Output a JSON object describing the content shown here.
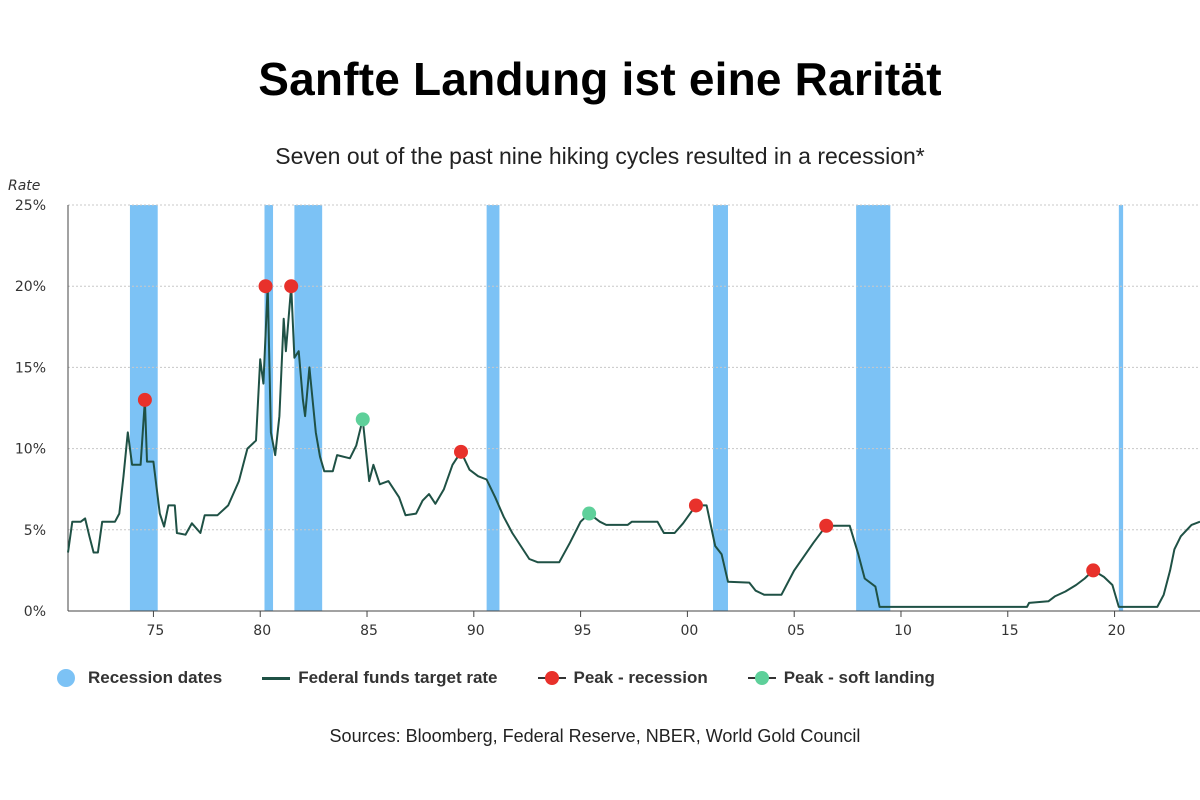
{
  "title": "Sanfte Landung ist eine Rarität",
  "subtitle": "Seven out of the past nine hiking cycles resulted in a recession*",
  "sources": "Sources: Bloomberg, Federal Reserve, NBER, World Gold Council",
  "colors": {
    "recession": "#7cc2f5",
    "line": "#1f5145",
    "peak_recession": "#e8312b",
    "peak_soft": "#5ed09a",
    "grid": "#c8c8c8"
  },
  "legend": [
    {
      "label": "Recession dates",
      "kind": "dot",
      "color": "#7cc2f5"
    },
    {
      "label": "Federal funds target rate",
      "kind": "line",
      "color": "#1f5145"
    },
    {
      "label": "Peak - recession",
      "kind": "marker",
      "color": "#e8312b"
    },
    {
      "label": "Peak - soft landing",
      "kind": "marker",
      "color": "#5ed09a"
    }
  ],
  "chart_data": {
    "type": "line",
    "ylabel": "Rate",
    "xlabel": "",
    "xlim": [
      1971,
      2024
    ],
    "ylim": [
      0,
      25
    ],
    "x_ticks": [
      {
        "value": 1975,
        "label": "75"
      },
      {
        "value": 1980,
        "label": "80"
      },
      {
        "value": 1985,
        "label": "85"
      },
      {
        "value": 1990,
        "label": "90"
      },
      {
        "value": 1995,
        "label": "95"
      },
      {
        "value": 2000,
        "label": "00"
      },
      {
        "value": 2005,
        "label": "05"
      },
      {
        "value": 2010,
        "label": "10"
      },
      {
        "value": 2015,
        "label": "15"
      },
      {
        "value": 2020,
        "label": "20"
      }
    ],
    "y_ticks": [
      {
        "value": 0,
        "label": "0%"
      },
      {
        "value": 5,
        "label": "5%"
      },
      {
        "value": 10,
        "label": "10%"
      },
      {
        "value": 15,
        "label": "15%"
      },
      {
        "value": 20,
        "label": "20%"
      },
      {
        "value": 25,
        "label": "25%"
      }
    ],
    "grid": true,
    "legend_position": "bottom",
    "recessions": [
      [
        1973.9,
        1975.2
      ],
      [
        1980.2,
        1980.6
      ],
      [
        1981.6,
        1982.9
      ],
      [
        1990.6,
        1991.2
      ],
      [
        2001.2,
        2001.9
      ],
      [
        2007.9,
        2009.5
      ],
      [
        2020.2,
        2020.4
      ]
    ],
    "series": [
      {
        "name": "Federal funds target rate",
        "points": [
          [
            1971.0,
            3.6
          ],
          [
            1971.2,
            5.5
          ],
          [
            1971.6,
            5.5
          ],
          [
            1971.8,
            5.7
          ],
          [
            1972.0,
            4.6
          ],
          [
            1972.2,
            3.6
          ],
          [
            1972.4,
            3.6
          ],
          [
            1972.6,
            5.5
          ],
          [
            1973.2,
            5.5
          ],
          [
            1973.4,
            6.0
          ],
          [
            1973.6,
            8.3
          ],
          [
            1973.8,
            11.0
          ],
          [
            1974.0,
            9.0
          ],
          [
            1974.4,
            9.0
          ],
          [
            1974.6,
            13.0
          ],
          [
            1974.7,
            9.2
          ],
          [
            1975.0,
            9.2
          ],
          [
            1975.3,
            6.0
          ],
          [
            1975.5,
            5.2
          ],
          [
            1975.7,
            6.5
          ],
          [
            1976.0,
            6.5
          ],
          [
            1976.1,
            4.8
          ],
          [
            1976.5,
            4.7
          ],
          [
            1976.8,
            5.4
          ],
          [
            1977.2,
            4.8
          ],
          [
            1977.4,
            5.9
          ],
          [
            1978.0,
            5.9
          ],
          [
            1978.5,
            6.5
          ],
          [
            1979.0,
            8.0
          ],
          [
            1979.4,
            10.0
          ],
          [
            1979.8,
            10.5
          ],
          [
            1980.0,
            15.5
          ],
          [
            1980.15,
            14.0
          ],
          [
            1980.35,
            20.0
          ],
          [
            1980.5,
            11.0
          ],
          [
            1980.7,
            9.6
          ],
          [
            1980.9,
            12.0
          ],
          [
            1981.1,
            18.0
          ],
          [
            1981.2,
            16.0
          ],
          [
            1981.45,
            20.0
          ],
          [
            1981.6,
            15.6
          ],
          [
            1981.8,
            16.0
          ],
          [
            1982.0,
            13.0
          ],
          [
            1982.1,
            12.0
          ],
          [
            1982.3,
            15.0
          ],
          [
            1982.6,
            11.0
          ],
          [
            1982.8,
            9.5
          ],
          [
            1983.0,
            8.6
          ],
          [
            1983.4,
            8.6
          ],
          [
            1983.6,
            9.6
          ],
          [
            1984.2,
            9.4
          ],
          [
            1984.5,
            10.2
          ],
          [
            1984.8,
            11.8
          ],
          [
            1985.1,
            8.0
          ],
          [
            1985.3,
            9.0
          ],
          [
            1985.6,
            7.8
          ],
          [
            1986.0,
            8.0
          ],
          [
            1986.5,
            7.0
          ],
          [
            1986.8,
            5.9
          ],
          [
            1987.3,
            6.0
          ],
          [
            1987.6,
            6.8
          ],
          [
            1987.9,
            7.2
          ],
          [
            1988.2,
            6.6
          ],
          [
            1988.6,
            7.5
          ],
          [
            1989.0,
            9.0
          ],
          [
            1989.4,
            9.8
          ],
          [
            1989.8,
            8.7
          ],
          [
            1990.2,
            8.3
          ],
          [
            1990.6,
            8.1
          ],
          [
            1991.0,
            7.0
          ],
          [
            1991.4,
            5.8
          ],
          [
            1991.8,
            4.8
          ],
          [
            1992.2,
            4.0
          ],
          [
            1992.6,
            3.2
          ],
          [
            1993.0,
            3.0
          ],
          [
            1994.0,
            3.0
          ],
          [
            1994.5,
            4.2
          ],
          [
            1995.0,
            5.5
          ],
          [
            1995.4,
            6.0
          ],
          [
            1995.9,
            5.5
          ],
          [
            1996.2,
            5.3
          ],
          [
            1997.2,
            5.3
          ],
          [
            1997.4,
            5.5
          ],
          [
            1998.6,
            5.5
          ],
          [
            1998.9,
            4.8
          ],
          [
            1999.4,
            4.8
          ],
          [
            1999.8,
            5.4
          ],
          [
            2000.4,
            6.5
          ],
          [
            2000.9,
            6.5
          ],
          [
            2001.3,
            4.0
          ],
          [
            2001.6,
            3.5
          ],
          [
            2001.9,
            1.8
          ],
          [
            2002.9,
            1.75
          ],
          [
            2003.2,
            1.25
          ],
          [
            2003.6,
            1.0
          ],
          [
            2004.4,
            1.0
          ],
          [
            2005.0,
            2.5
          ],
          [
            2005.9,
            4.2
          ],
          [
            2006.5,
            5.25
          ],
          [
            2007.6,
            5.25
          ],
          [
            2008.0,
            3.5
          ],
          [
            2008.3,
            2.0
          ],
          [
            2008.8,
            1.5
          ],
          [
            2009.0,
            0.25
          ],
          [
            2015.9,
            0.25
          ],
          [
            2016.0,
            0.5
          ],
          [
            2016.9,
            0.6
          ],
          [
            2017.2,
            0.9
          ],
          [
            2017.7,
            1.2
          ],
          [
            2018.2,
            1.6
          ],
          [
            2018.6,
            2.0
          ],
          [
            2019.0,
            2.5
          ],
          [
            2019.5,
            2.1
          ],
          [
            2019.9,
            1.6
          ],
          [
            2020.2,
            0.25
          ],
          [
            2022.0,
            0.25
          ],
          [
            2022.3,
            1.0
          ],
          [
            2022.6,
            2.5
          ],
          [
            2022.8,
            3.8
          ],
          [
            2023.1,
            4.6
          ],
          [
            2023.6,
            5.3
          ],
          [
            2024.0,
            5.5
          ]
        ]
      }
    ],
    "peaks_recession": [
      [
        1974.6,
        13.0
      ],
      [
        1980.25,
        20.0
      ],
      [
        1981.45,
        20.0
      ],
      [
        1989.4,
        9.8
      ],
      [
        2000.4,
        6.5
      ],
      [
        2006.5,
        5.25
      ],
      [
        2019.0,
        2.5
      ]
    ],
    "peaks_soft_landing": [
      [
        1984.8,
        11.8
      ],
      [
        1995.4,
        6.0
      ]
    ]
  }
}
